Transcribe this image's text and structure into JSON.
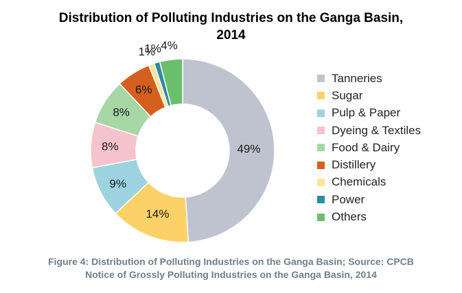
{
  "chart_data": {
    "type": "pie",
    "subtype": "donut",
    "title_line1": "Distribution of Polluting Industries on the Ganga Basin,",
    "title_line2": "2014",
    "categories": [
      "Tanneries",
      "Sugar",
      "Pulp & Paper",
      "Dyeing & Textiles",
      "Food & Dairy",
      "Distillery",
      "Chemicals",
      "Power",
      "Others"
    ],
    "values": [
      49,
      14,
      9,
      8,
      8,
      6,
      1,
      1,
      4
    ],
    "labels": [
      "49%",
      "14%",
      "9%",
      "8%",
      "8%",
      "6%",
      "1%",
      "1%",
      "4%"
    ],
    "colors": [
      "#bfc3cf",
      "#fcd268",
      "#9dd3df",
      "#f5c3cb",
      "#a6d7a5",
      "#d45f1e",
      "#fde49a",
      "#2f8aa6",
      "#6bbf6c"
    ],
    "legend_position": "right"
  },
  "caption_line1": "Figure 4: Distribution of Polluting Industries on the Ganga Basin; Source: CPCB",
  "caption_line2": "Notice of Grossly Polluting Industries on the Ganga Basin, 2014"
}
